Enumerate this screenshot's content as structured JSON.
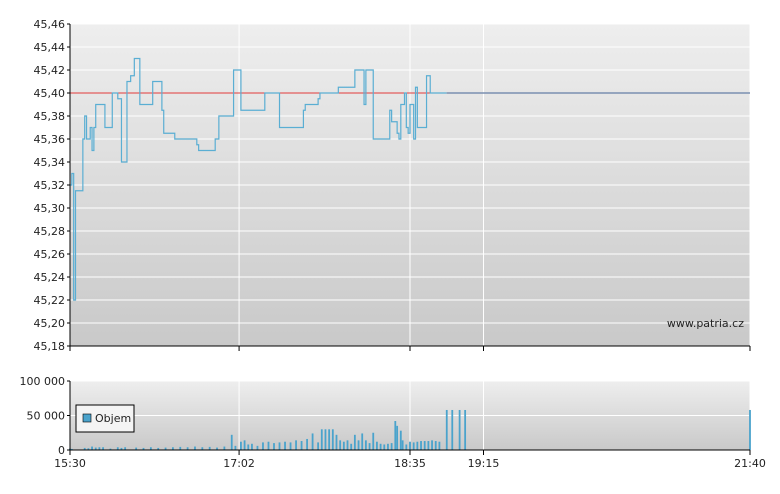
{
  "watermark": "www.patria.cz",
  "colors": {
    "price_line": "#5aaed3",
    "reference_line": "#e23b3b",
    "flat_line": "#7a8fb0",
    "volume_bar": "#4aa3cc",
    "grid": "#ffffff",
    "axis": "#000000",
    "bg_top": "#eeeeee",
    "bg_bottom": "#c9c9c9"
  },
  "chart_data": [
    {
      "type": "line",
      "name": "price",
      "xlim": [
        "15:30",
        "21:40"
      ],
      "ylim": [
        45.18,
        45.46
      ],
      "y_ticks": [
        "45,46",
        "45,44",
        "45,42",
        "45,40",
        "45,38",
        "45,36",
        "45,34",
        "45,32",
        "45,30",
        "45,28",
        "45,26",
        "45,24",
        "45,22",
        "45,20",
        "45,18"
      ],
      "reference_value": 45.4,
      "grid": true,
      "watermark": "www.patria.cz",
      "x": [
        "15:30",
        "15:31",
        "15:32",
        "15:33",
        "15:36",
        "15:37",
        "15:38",
        "15:39",
        "15:40",
        "15:41",
        "15:42",
        "15:43",
        "15:44",
        "15:48",
        "15:49",
        "15:52",
        "15:53",
        "15:54",
        "15:56",
        "15:57",
        "15:58",
        "16:00",
        "16:01",
        "16:02",
        "16:03",
        "16:04",
        "16:05",
        "16:06",
        "16:08",
        "16:09",
        "16:10",
        "16:14",
        "16:15",
        "16:16",
        "16:20",
        "16:21",
        "16:27",
        "16:28",
        "16:35",
        "16:36",
        "16:39",
        "16:40",
        "16:41",
        "16:42",
        "16:49",
        "16:50",
        "16:51",
        "16:54",
        "16:57",
        "16:58",
        "16:59",
        "17:03",
        "17:16",
        "17:17",
        "17:24",
        "17:25",
        "17:30",
        "17:31",
        "17:37",
        "17:38",
        "17:39",
        "17:45",
        "17:46",
        "17:51",
        "17:52",
        "17:56",
        "17:57",
        "18:04",
        "18:05",
        "18:07",
        "18:09",
        "18:10",
        "18:11",
        "18:14",
        "18:15",
        "18:18",
        "18:23",
        "18:24",
        "18:25",
        "18:28",
        "18:29",
        "18:30",
        "18:32",
        "18:33",
        "18:34",
        "18:35",
        "18:37",
        "18:38",
        "18:39",
        "18:43",
        "18:44",
        "18:45",
        "18:46",
        "18:55",
        "21:40"
      ],
      "y": [
        45.32,
        45.33,
        45.22,
        45.315,
        45.315,
        45.36,
        45.38,
        45.36,
        45.36,
        45.37,
        45.35,
        45.37,
        45.39,
        45.39,
        45.37,
        45.37,
        45.4,
        45.4,
        45.395,
        45.395,
        45.34,
        45.34,
        45.41,
        45.41,
        45.415,
        45.415,
        45.43,
        45.43,
        45.39,
        45.39,
        45.39,
        45.39,
        45.41,
        45.41,
        45.385,
        45.365,
        45.36,
        45.36,
        45.36,
        45.36,
        45.355,
        45.35,
        45.35,
        45.35,
        45.36,
        45.36,
        45.38,
        45.38,
        45.38,
        45.38,
        45.42,
        45.385,
        45.4,
        45.4,
        45.37,
        45.37,
        45.37,
        45.37,
        45.385,
        45.39,
        45.39,
        45.395,
        45.4,
        45.4,
        45.4,
        45.405,
        45.405,
        45.405,
        45.42,
        45.42,
        45.42,
        45.39,
        45.42,
        45.42,
        45.36,
        45.36,
        45.36,
        45.385,
        45.375,
        45.365,
        45.36,
        45.39,
        45.4,
        45.37,
        45.365,
        45.39,
        45.36,
        45.405,
        45.37,
        45.37,
        45.415,
        45.415,
        45.4,
        45.4,
        45.4
      ]
    },
    {
      "type": "bar",
      "name": "volume",
      "legend": [
        "Objem"
      ],
      "legend_position": "left",
      "xlim": [
        "15:30",
        "21:40"
      ],
      "ylim": [
        0,
        100000
      ],
      "y_ticks": [
        "100 000",
        "50 000",
        "0"
      ],
      "x_ticks": [
        "15:30",
        "17:02",
        "18:35",
        "19:15",
        "21:40"
      ],
      "x": [
        "15:30",
        "15:31",
        "15:38",
        "15:40",
        "15:42",
        "15:44",
        "15:46",
        "15:48",
        "15:52",
        "15:56",
        "15:58",
        "16:00",
        "16:06",
        "16:10",
        "16:14",
        "16:18",
        "16:22",
        "16:26",
        "16:30",
        "16:34",
        "16:38",
        "16:42",
        "16:46",
        "16:50",
        "16:54",
        "16:58",
        "17:00",
        "17:03",
        "17:05",
        "17:07",
        "17:09",
        "17:12",
        "17:15",
        "17:18",
        "17:21",
        "17:24",
        "17:27",
        "17:30",
        "17:33",
        "17:36",
        "17:39",
        "17:42",
        "17:45",
        "17:47",
        "17:49",
        "17:51",
        "17:53",
        "17:55",
        "17:57",
        "17:59",
        "18:01",
        "18:03",
        "18:05",
        "18:07",
        "18:09",
        "18:11",
        "18:13",
        "18:15",
        "18:17",
        "18:19",
        "18:21",
        "18:23",
        "18:25",
        "18:27",
        "18:28",
        "18:30",
        "18:31",
        "18:33",
        "18:35",
        "18:37",
        "18:39",
        "18:41",
        "18:43",
        "18:45",
        "18:47",
        "18:49",
        "18:51",
        "18:55",
        "18:58",
        "19:02",
        "19:05",
        "21:40"
      ],
      "values": [
        2000,
        1500,
        3000,
        2500,
        5000,
        3500,
        4000,
        4000,
        2000,
        4000,
        3000,
        4000,
        3500,
        3000,
        4000,
        3000,
        3500,
        4000,
        4500,
        4000,
        5000,
        4000,
        4500,
        3500,
        5000,
        22000,
        6000,
        12000,
        14000,
        8000,
        9000,
        6000,
        11000,
        12000,
        10000,
        11000,
        12000,
        11000,
        14000,
        13000,
        16000,
        24000,
        11000,
        30000,
        30000,
        30000,
        30000,
        22000,
        14000,
        12000,
        14000,
        9000,
        22000,
        14000,
        24000,
        14000,
        10000,
        25000,
        12000,
        9000,
        8000,
        9000,
        10000,
        42000,
        35000,
        28000,
        14000,
        8000,
        12000,
        11000,
        12000,
        13000,
        13000,
        13000,
        14000,
        13000,
        12000,
        58000,
        58000,
        58000,
        58000,
        58000
      ]
    }
  ]
}
